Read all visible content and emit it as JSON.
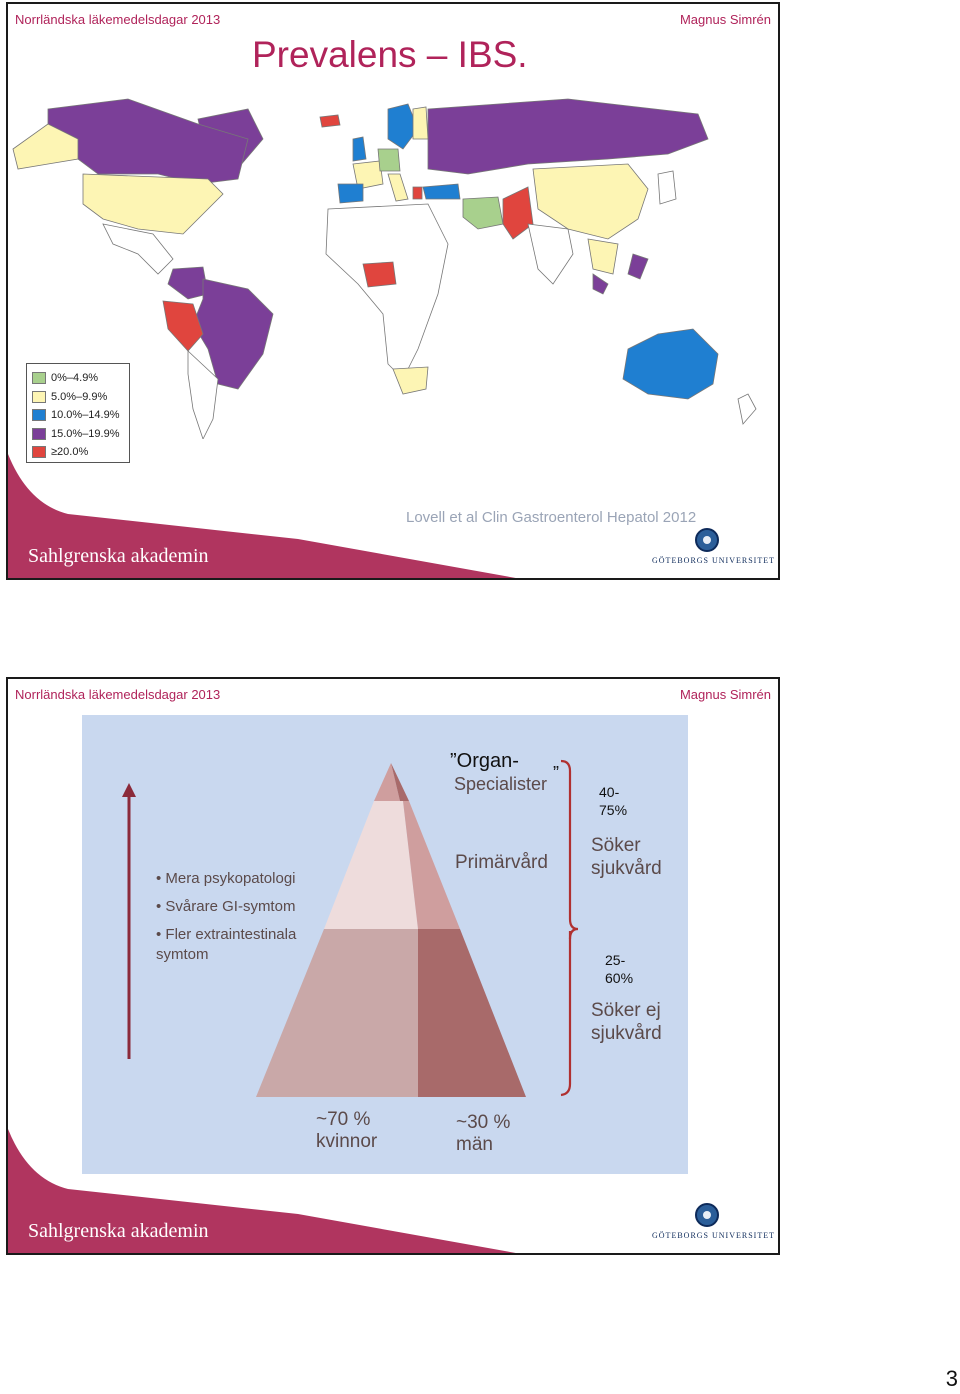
{
  "header": {
    "conference": "Norrländska läkemedelsdagar 2013",
    "author": "Magnus Simrén"
  },
  "footer": {
    "akademin": "Sahlgrenska akademin",
    "university": "GÖTEBORGS UNIVERSITET"
  },
  "slide1": {
    "title": "Prevalens – IBS.",
    "citation": "Lovell et al Clin Gastroenterol Hepatol 2012",
    "legend": [
      {
        "label": "0%–4.9%",
        "color": "#a8d08d"
      },
      {
        "label": "5.0%–9.9%",
        "color": "#fdf5b4"
      },
      {
        "label": "10.0%–14.9%",
        "color": "#1f7fd1"
      },
      {
        "label": "15.0%–19.9%",
        "color": "#7b3f98"
      },
      {
        "label": "≥20.0%",
        "color": "#e0453e"
      }
    ]
  },
  "slide2": {
    "left_bullets": [
      "Mera psykopatologi",
      "Svårare GI-symtom",
      "Fler extraintestinala symtom"
    ],
    "organ_quote_open": "”Organ-",
    "organ_line2": "Specialister",
    "organ_quote_close": "”",
    "primarvard": "Primärvård",
    "top_pct": "40-\n75%",
    "soker_sjukvard": "Söker\nsjukvård",
    "bottom_pct": "25-\n60%",
    "soker_ej": "Söker ej\nsjukvård",
    "women": "~70 %\nkvinnor",
    "men": "~30 %\nmän"
  },
  "page_number": "3"
}
